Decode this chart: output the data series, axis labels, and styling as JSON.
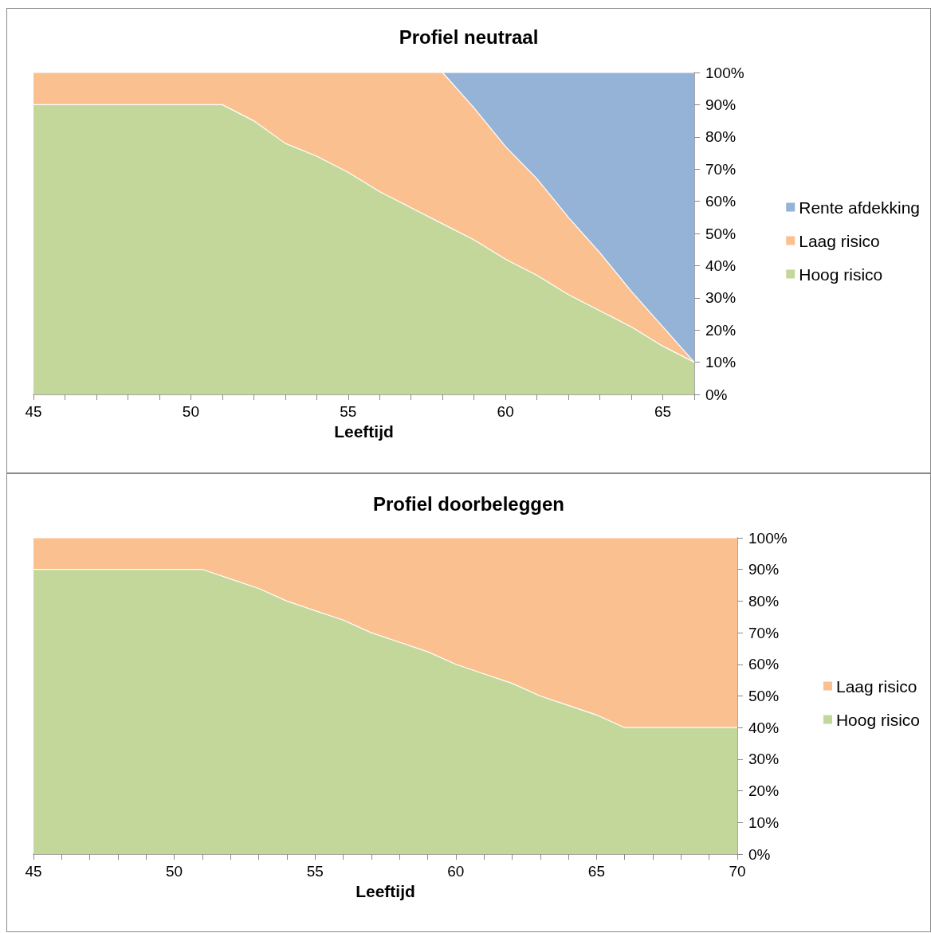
{
  "chart_data": [
    {
      "type": "area",
      "title": "Profiel neutraal",
      "xlabel": "Leeftijd",
      "stacked": true,
      "legend": "right",
      "x": [
        45,
        46,
        47,
        48,
        49,
        50,
        51,
        52,
        53,
        54,
        55,
        56,
        57,
        58,
        59,
        60,
        61,
        62,
        63,
        64,
        65,
        66
      ],
      "series": [
        {
          "name": "Hoog risico",
          "color": "#c4d79b",
          "values": [
            90,
            90,
            90,
            90,
            90,
            90,
            90,
            85,
            78,
            74,
            69,
            63,
            58,
            53,
            48,
            42,
            37,
            31,
            26,
            21,
            15,
            10
          ]
        },
        {
          "name": "Laag risico",
          "color": "#fac090",
          "values": [
            10,
            10,
            10,
            10,
            10,
            10,
            10,
            15,
            22,
            26,
            31,
            37,
            42,
            47,
            41,
            35,
            30,
            24,
            18,
            11,
            6,
            0
          ]
        },
        {
          "name": "Rente afdekking",
          "color": "#95b3d7",
          "values": [
            null,
            null,
            null,
            null,
            null,
            null,
            null,
            null,
            null,
            null,
            null,
            null,
            null,
            0,
            11,
            23,
            33,
            45,
            56,
            68,
            79,
            90
          ]
        }
      ],
      "xlim": [
        45,
        66
      ],
      "xticks": [
        45,
        {
          "value": 46,
          "label": null
        },
        {
          "value": 47,
          "label": null
        },
        {
          "value": 48,
          "label": null
        },
        {
          "value": 49,
          "label": null
        },
        50,
        {
          "value": 51,
          "label": null
        },
        {
          "value": 52,
          "label": null
        },
        {
          "value": 53,
          "label": null
        },
        {
          "value": 54,
          "label": null
        },
        55,
        {
          "value": 56,
          "label": null
        },
        {
          "value": 57,
          "label": null
        },
        {
          "value": 58,
          "label": null
        },
        {
          "value": 59,
          "label": null
        },
        60,
        {
          "value": 61,
          "label": null
        },
        {
          "value": 62,
          "label": null
        },
        {
          "value": 63,
          "label": null
        },
        {
          "value": 64,
          "label": null
        },
        65,
        {
          "value": 66,
          "label": null
        }
      ],
      "ylim": [
        0,
        100
      ],
      "yticks": [
        {
          "value": 0,
          "label": "0%"
        },
        {
          "value": 10,
          "label": "10%"
        },
        {
          "value": 20,
          "label": "20%"
        },
        {
          "value": 30,
          "label": "30%"
        },
        {
          "value": 40,
          "label": "40%"
        },
        {
          "value": 50,
          "label": "50%"
        },
        {
          "value": 60,
          "label": "60%"
        },
        {
          "value": 70,
          "label": "70%"
        },
        {
          "value": 80,
          "label": "80%"
        },
        {
          "value": 90,
          "label": "90%"
        },
        {
          "value": 100,
          "label": "100%"
        }
      ]
    },
    {
      "type": "area",
      "title": "Profiel doorbeleggen",
      "xlabel": "Leeftijd",
      "stacked": true,
      "legend": "right",
      "x": [
        45,
        46,
        47,
        48,
        49,
        50,
        51,
        52,
        53,
        54,
        55,
        56,
        57,
        58,
        59,
        60,
        61,
        62,
        63,
        64,
        65,
        66,
        67,
        68,
        69,
        70
      ],
      "series": [
        {
          "name": "Hoog risico",
          "color": "#c4d79b",
          "values": [
            90,
            90,
            90,
            90,
            90,
            90,
            90,
            87,
            84,
            80,
            77,
            74,
            70,
            67,
            64,
            60,
            57,
            54,
            50,
            47,
            44,
            40,
            40,
            40,
            40,
            40
          ]
        },
        {
          "name": "Laag risico",
          "color": "#fac090",
          "values": [
            10,
            10,
            10,
            10,
            10,
            10,
            10,
            13,
            16,
            20,
            23,
            26,
            30,
            33,
            36,
            40,
            43,
            46,
            50,
            53,
            56,
            60,
            60,
            60,
            60,
            60
          ]
        }
      ],
      "xlim": [
        45,
        70
      ],
      "xticks": [
        45,
        {
          "value": 46,
          "label": null
        },
        {
          "value": 47,
          "label": null
        },
        {
          "value": 48,
          "label": null
        },
        {
          "value": 49,
          "label": null
        },
        50,
        {
          "value": 51,
          "label": null
        },
        {
          "value": 52,
          "label": null
        },
        {
          "value": 53,
          "label": null
        },
        {
          "value": 54,
          "label": null
        },
        55,
        {
          "value": 56,
          "label": null
        },
        {
          "value": 57,
          "label": null
        },
        {
          "value": 58,
          "label": null
        },
        {
          "value": 59,
          "label": null
        },
        60,
        {
          "value": 61,
          "label": null
        },
        {
          "value": 62,
          "label": null
        },
        {
          "value": 63,
          "label": null
        },
        {
          "value": 64,
          "label": null
        },
        65,
        {
          "value": 66,
          "label": null
        },
        {
          "value": 67,
          "label": null
        },
        {
          "value": 68,
          "label": null
        },
        {
          "value": 69,
          "label": null
        },
        70
      ],
      "ylim": [
        0,
        100
      ],
      "yticks": [
        {
          "value": 0,
          "label": "0%"
        },
        {
          "value": 10,
          "label": "10%"
        },
        {
          "value": 20,
          "label": "20%"
        },
        {
          "value": 30,
          "label": "30%"
        },
        {
          "value": 40,
          "label": "40%"
        },
        {
          "value": 50,
          "label": "50%"
        },
        {
          "value": 60,
          "label": "60%"
        },
        {
          "value": 70,
          "label": "70%"
        },
        {
          "value": 80,
          "label": "80%"
        },
        {
          "value": 90,
          "label": "90%"
        },
        {
          "value": 100,
          "label": "100%"
        }
      ]
    }
  ]
}
